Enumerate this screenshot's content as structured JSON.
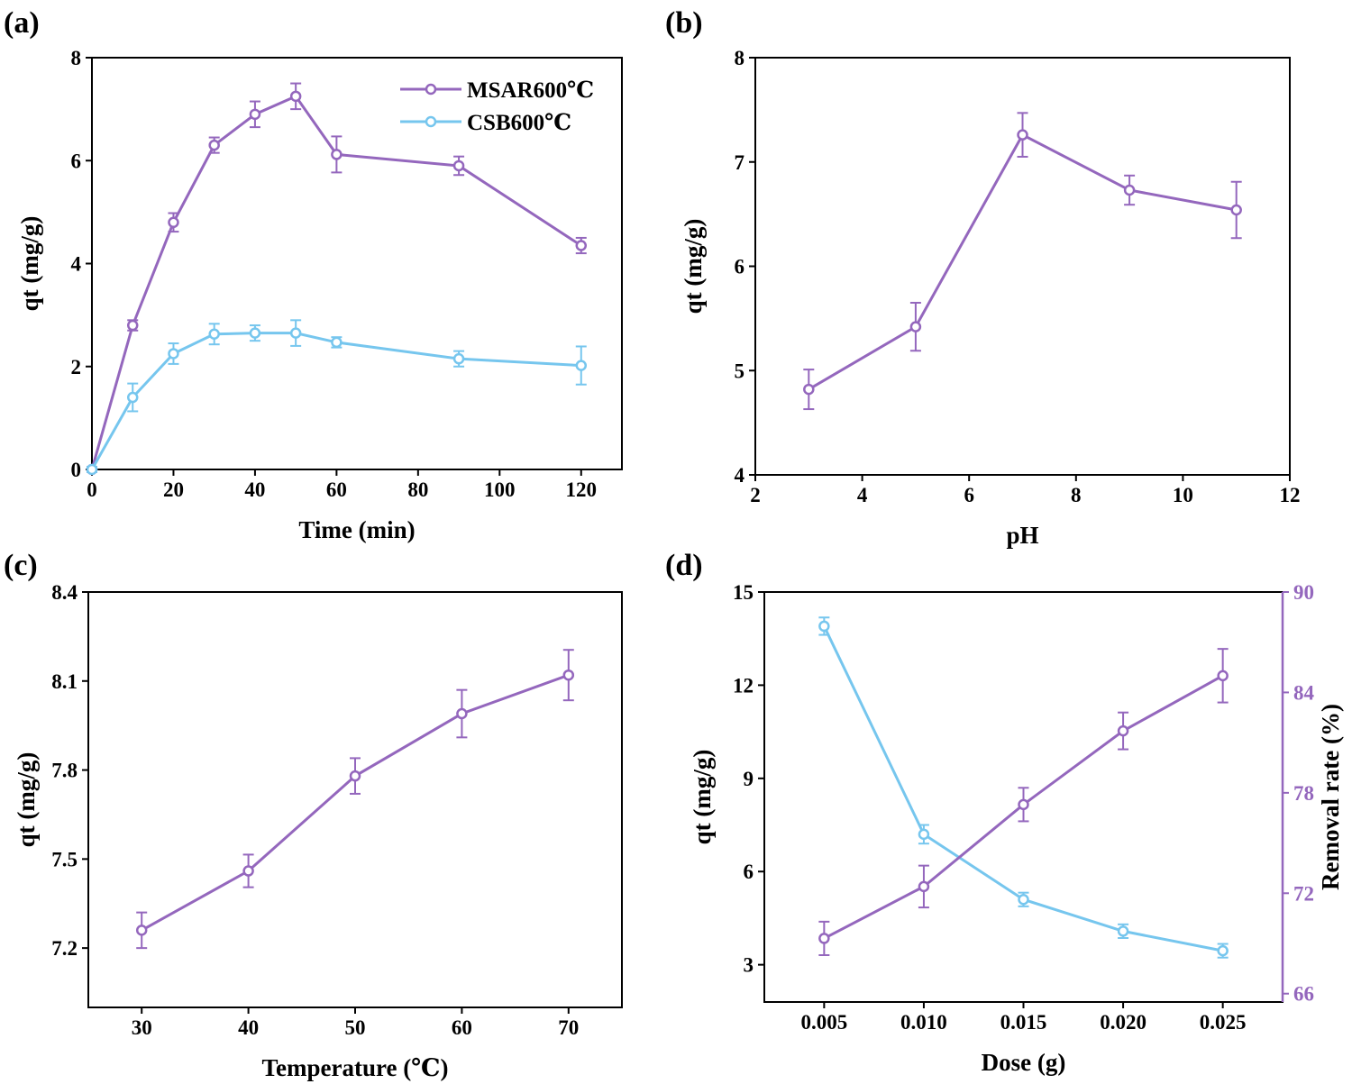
{
  "colors": {
    "purple": "#9467bd",
    "blue": "#76c6ee",
    "right_axis": "#9467bd",
    "axis": "#000000"
  },
  "chart_data": [
    {
      "id": "a",
      "panel_label": "(a)",
      "type": "line",
      "xlabel": "Time (min)",
      "ylabel": "qt (mg/g)",
      "xlim": [
        0,
        130
      ],
      "ylim": [
        0,
        8
      ],
      "xticks": [
        0,
        20,
        40,
        60,
        80,
        100,
        120
      ],
      "xtick_labels": [
        "0",
        "20",
        "40",
        "60",
        "80",
        "100",
        "120"
      ],
      "yticks": [
        0,
        2,
        4,
        6,
        8
      ],
      "ytick_labels": [
        "0",
        "2",
        "4",
        "6",
        "8"
      ],
      "legend": "top-right",
      "series": [
        {
          "name": "MSAR600℃",
          "color": "purple",
          "show_legend": true,
          "x": [
            0,
            10,
            20,
            30,
            40,
            50,
            60,
            90,
            120
          ],
          "y": [
            0,
            2.8,
            4.8,
            6.3,
            6.9,
            7.25,
            6.12,
            5.9,
            4.35
          ],
          "err": [
            0.05,
            0.1,
            0.18,
            0.15,
            0.25,
            0.25,
            0.35,
            0.18,
            0.15
          ]
        },
        {
          "name": "CSB600℃",
          "color": "blue",
          "show_legend": true,
          "x": [
            0,
            10,
            20,
            30,
            40,
            50,
            60,
            90,
            120
          ],
          "y": [
            0,
            1.4,
            2.25,
            2.63,
            2.65,
            2.65,
            2.47,
            2.15,
            2.02
          ],
          "err": [
            0.05,
            0.27,
            0.2,
            0.2,
            0.15,
            0.25,
            0.1,
            0.15,
            0.37
          ]
        }
      ]
    },
    {
      "id": "b",
      "panel_label": "(b)",
      "type": "line",
      "xlabel": "pH",
      "ylabel": "qt (mg/g)",
      "xlim": [
        2,
        12
      ],
      "ylim": [
        4,
        8
      ],
      "xticks": [
        2,
        4,
        6,
        8,
        10,
        12
      ],
      "xtick_labels": [
        "2",
        "4",
        "6",
        "8",
        "10",
        "12"
      ],
      "yticks": [
        4,
        5,
        6,
        7,
        8
      ],
      "ytick_labels": [
        "4",
        "5",
        "6",
        "7",
        "8"
      ],
      "series": [
        {
          "name": "MSAR600℃",
          "color": "purple",
          "show_legend": false,
          "x": [
            3,
            5,
            7,
            9,
            11
          ],
          "y": [
            4.82,
            5.42,
            7.26,
            6.73,
            6.54
          ],
          "err": [
            0.19,
            0.23,
            0.21,
            0.14,
            0.27
          ]
        }
      ]
    },
    {
      "id": "c",
      "panel_label": "(c)",
      "type": "line",
      "xlabel": "Temperature (℃)",
      "ylabel": "qt (mg/g)",
      "xlim": [
        25,
        75
      ],
      "ylim": [
        7.0,
        8.4
      ],
      "xticks": [
        30,
        40,
        50,
        60,
        70
      ],
      "xtick_labels": [
        "30",
        "40",
        "50",
        "60",
        "70"
      ],
      "yticks": [
        7.2,
        7.5,
        7.8,
        8.1,
        8.4
      ],
      "ytick_labels": [
        "7.2",
        "7.5",
        "7.8",
        "8.1",
        "8.4"
      ],
      "series": [
        {
          "name": "MSAR600℃",
          "color": "purple",
          "show_legend": false,
          "x": [
            30,
            40,
            50,
            60,
            70
          ],
          "y": [
            7.26,
            7.46,
            7.78,
            7.99,
            8.12
          ],
          "err": [
            0.06,
            0.055,
            0.06,
            0.08,
            0.085
          ]
        }
      ]
    },
    {
      "id": "d",
      "panel_label": "(d)",
      "type": "line",
      "xlabel": "Dose (g)",
      "ylabel": "qt (mg/g)",
      "ylabel_right": "Removal rate (%)",
      "xlim": [
        0.002,
        0.028
      ],
      "ylim": [
        1.8,
        15
      ],
      "ylim_right": [
        65.5,
        90
      ],
      "xticks": [
        0.005,
        0.01,
        0.015,
        0.02,
        0.025
      ],
      "xtick_labels": [
        "0.005",
        "0.010",
        "0.015",
        "0.020",
        "0.025"
      ],
      "yticks": [
        3,
        6,
        9,
        12,
        15
      ],
      "ytick_labels": [
        "3",
        "6",
        "9",
        "12",
        "15"
      ],
      "yticks_right": [
        66,
        72,
        78,
        84,
        90
      ],
      "ytick_labels_right": [
        "66",
        "72",
        "78",
        "84",
        "90"
      ],
      "series": [
        {
          "name": "qt",
          "color": "blue",
          "axis": "left",
          "show_legend": false,
          "x": [
            0.005,
            0.01,
            0.015,
            0.02,
            0.025
          ],
          "y": [
            13.9,
            7.2,
            5.1,
            4.08,
            3.45
          ],
          "err": [
            0.28,
            0.3,
            0.22,
            0.22,
            0.22
          ]
        },
        {
          "name": "Removal rate",
          "color": "purple",
          "axis": "right",
          "show_legend": false,
          "x": [
            0.005,
            0.01,
            0.015,
            0.02,
            0.025
          ],
          "y": [
            69.3,
            72.4,
            77.3,
            81.7,
            85.0
          ],
          "err": [
            1.0,
            1.25,
            1.0,
            1.1,
            1.6
          ]
        }
      ]
    }
  ]
}
